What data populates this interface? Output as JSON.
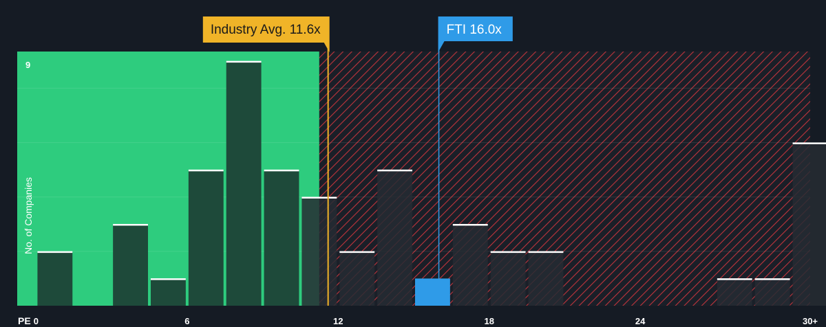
{
  "chart_data": {
    "type": "bar",
    "xlabel": "PE",
    "ylabel": "No. of Companies",
    "x_ticks": [
      "0",
      "6",
      "12",
      "18",
      "24",
      "30+"
    ],
    "y_ticks": [
      "9"
    ],
    "xlim": [
      -0.75,
      30.75
    ],
    "ylim": [
      0,
      9.35
    ],
    "bin_width": 1.5,
    "bins": [
      {
        "x": 0.75,
        "count": 2
      },
      {
        "x": 2.25,
        "count": 0
      },
      {
        "x": 3.75,
        "count": 3
      },
      {
        "x": 5.25,
        "count": 1
      },
      {
        "x": 6.75,
        "count": 5
      },
      {
        "x": 8.25,
        "count": 9
      },
      {
        "x": 9.75,
        "count": 5
      },
      {
        "x": 11.25,
        "count": 4
      },
      {
        "x": 12.75,
        "count": 2
      },
      {
        "x": 14.25,
        "count": 5
      },
      {
        "x": 15.75,
        "count": 1,
        "highlight": true
      },
      {
        "x": 17.25,
        "count": 3
      },
      {
        "x": 18.75,
        "count": 2
      },
      {
        "x": 20.25,
        "count": 2
      },
      {
        "x": 21.75,
        "count": 0
      },
      {
        "x": 23.25,
        "count": 0
      },
      {
        "x": 24.75,
        "count": 0
      },
      {
        "x": 26.25,
        "count": 0
      },
      {
        "x": 27.75,
        "count": 1
      },
      {
        "x": 29.25,
        "count": 1
      },
      {
        "x": 30.75,
        "count": 6
      }
    ],
    "industry_avg": {
      "label": "Industry Avg. 11.6x",
      "value": 11.6
    },
    "company": {
      "label": "FTI 16.0x",
      "value": 16.0
    },
    "fair_region_end": 11.25,
    "colors": {
      "background": "#151b24",
      "fair_region": "#2ecc7e",
      "bar_fair": "#1e4a3a",
      "bar_expensive": "#262b33",
      "hatch": "#c0343c",
      "industry": "#f0b428",
      "company": "#2f9be8",
      "bar_top": "#ffffff"
    }
  }
}
